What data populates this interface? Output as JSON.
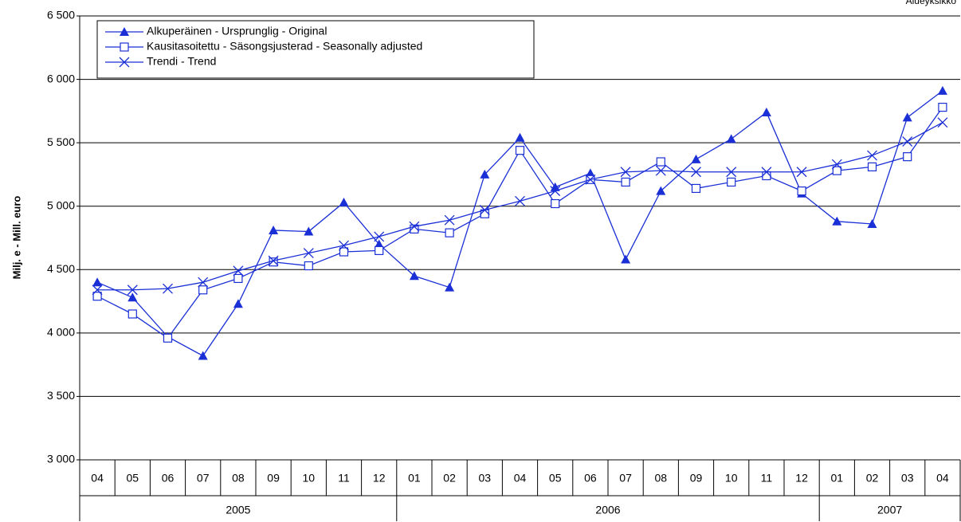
{
  "chart_data": {
    "type": "line",
    "corner_note": "Alueyksikkö",
    "y_label": "Milj. e - Mill. euro",
    "categories": [
      "04",
      "05",
      "06",
      "07",
      "08",
      "09",
      "10",
      "11",
      "12",
      "01",
      "02",
      "03",
      "04",
      "05",
      "06",
      "07",
      "08",
      "09",
      "10",
      "11",
      "12",
      "01",
      "02",
      "03",
      "04"
    ],
    "category_groups": [
      "2005",
      "2005",
      "2005",
      "2005",
      "2005",
      "2005",
      "2005",
      "2005",
      "2005",
      "2006",
      "2006",
      "2006",
      "2006",
      "2006",
      "2006",
      "2006",
      "2006",
      "2006",
      "2006",
      "2006",
      "2006",
      "2007",
      "2007",
      "2007",
      "2007"
    ],
    "ylim": [
      3000,
      6500
    ],
    "yticks": [
      {
        "value": 3000,
        "label": "3 000"
      },
      {
        "value": 3500,
        "label": "3 500"
      },
      {
        "value": 4000,
        "label": "4 000"
      },
      {
        "value": 4500,
        "label": "4 500"
      },
      {
        "value": 5000,
        "label": "5 000"
      },
      {
        "value": 5500,
        "label": "5 500"
      },
      {
        "value": 6000,
        "label": "6 000"
      },
      {
        "value": 6500,
        "label": "6 500"
      }
    ],
    "grid": true,
    "legend": "upper left",
    "series": [
      {
        "name": "Alkuperäinen - Ursprunglig - Original",
        "color": "#1a2fd6",
        "marker": "triangle",
        "values": [
          4400,
          4280,
          3970,
          3820,
          4230,
          4810,
          4800,
          5030,
          4700,
          4450,
          4360,
          5250,
          5540,
          5150,
          5260,
          4580,
          5120,
          5370,
          5530,
          5740,
          5100,
          4880,
          4860,
          5700,
          5910
        ]
      },
      {
        "name": "Kausitasoitettu - Säsongsjusterad - Seasonally adjusted",
        "color": "#1a2fd6",
        "marker": "square",
        "values": [
          4290,
          4150,
          3960,
          4340,
          4430,
          4560,
          4530,
          4640,
          4650,
          4820,
          4790,
          4940,
          5440,
          5020,
          5210,
          5190,
          5350,
          5140,
          5190,
          5240,
          5120,
          5280,
          5310,
          5390,
          5780
        ]
      },
      {
        "name": "Trendi - Trend",
        "color": "#1a2fd6",
        "marker": "x",
        "values": [
          4340,
          4340,
          4350,
          4400,
          4490,
          4570,
          4630,
          4690,
          4760,
          4840,
          4890,
          4970,
          5040,
          5120,
          5210,
          5270,
          5280,
          5270,
          5270,
          5270,
          5270,
          5330,
          5400,
          5510,
          5660
        ]
      }
    ]
  }
}
